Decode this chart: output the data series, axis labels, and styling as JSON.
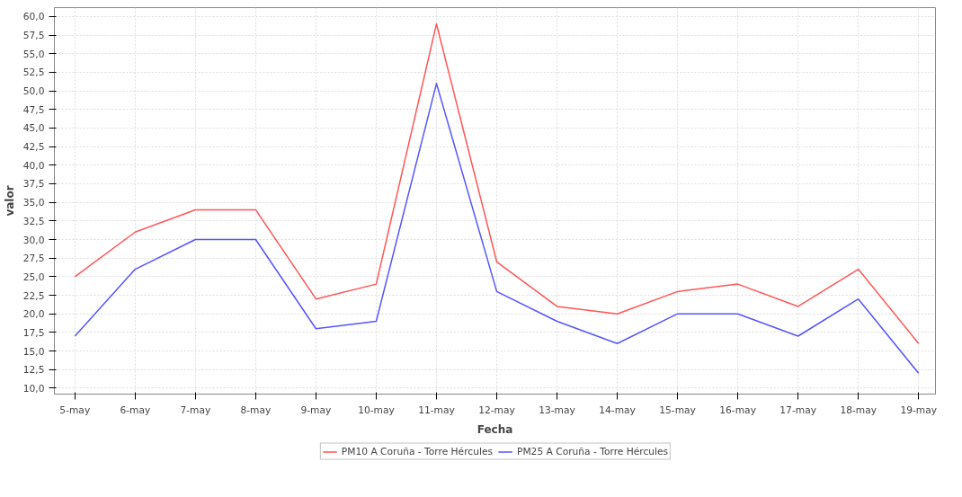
{
  "chart_data": {
    "type": "line",
    "xlabel": "Fecha",
    "ylabel": "valor",
    "categories": [
      "5-may",
      "6-may",
      "7-may",
      "8-may",
      "9-may",
      "10-may",
      "11-may",
      "12-may",
      "13-may",
      "14-may",
      "15-may",
      "16-may",
      "17-may",
      "18-may",
      "19-may"
    ],
    "series": [
      {
        "name": "PM10 A Coruña - Torre Hércules",
        "color": "#ff5555",
        "values": [
          25,
          31,
          34,
          34,
          22,
          24,
          59,
          27,
          21,
          20,
          23,
          24,
          21,
          26,
          16
        ]
      },
      {
        "name": "PM25 A Coruña - Torre Hércules",
        "color": "#5555ff",
        "values": [
          17,
          26,
          30,
          30,
          18,
          19,
          51,
          23,
          19,
          16,
          20,
          20,
          17,
          22,
          12
        ]
      }
    ],
    "ylim": [
      9.2,
      61.2
    ],
    "yticks": [
      {
        "value": 10,
        "label": "10,0"
      },
      {
        "value": 12.5,
        "label": "12,5"
      },
      {
        "value": 15,
        "label": "15,0"
      },
      {
        "value": 17.5,
        "label": "17,5"
      },
      {
        "value": 20,
        "label": "20,0"
      },
      {
        "value": 22.5,
        "label": "22,5"
      },
      {
        "value": 25,
        "label": "25,0"
      },
      {
        "value": 27.5,
        "label": "27,5"
      },
      {
        "value": 30,
        "label": "30,0"
      },
      {
        "value": 32.5,
        "label": "32,5"
      },
      {
        "value": 35,
        "label": "35,0"
      },
      {
        "value": 37.5,
        "label": "37,5"
      },
      {
        "value": 40,
        "label": "40,0"
      },
      {
        "value": 42.5,
        "label": "42,5"
      },
      {
        "value": 45,
        "label": "45,0"
      },
      {
        "value": 47.5,
        "label": "47,5"
      },
      {
        "value": 50,
        "label": "50,0"
      },
      {
        "value": 52.5,
        "label": "52,5"
      },
      {
        "value": 55,
        "label": "55,0"
      },
      {
        "value": 57.5,
        "label": "57,5"
      },
      {
        "value": 60,
        "label": "60,0"
      }
    ],
    "grid": true,
    "legend": "bottom",
    "marker": "none",
    "line_style": "solid"
  }
}
